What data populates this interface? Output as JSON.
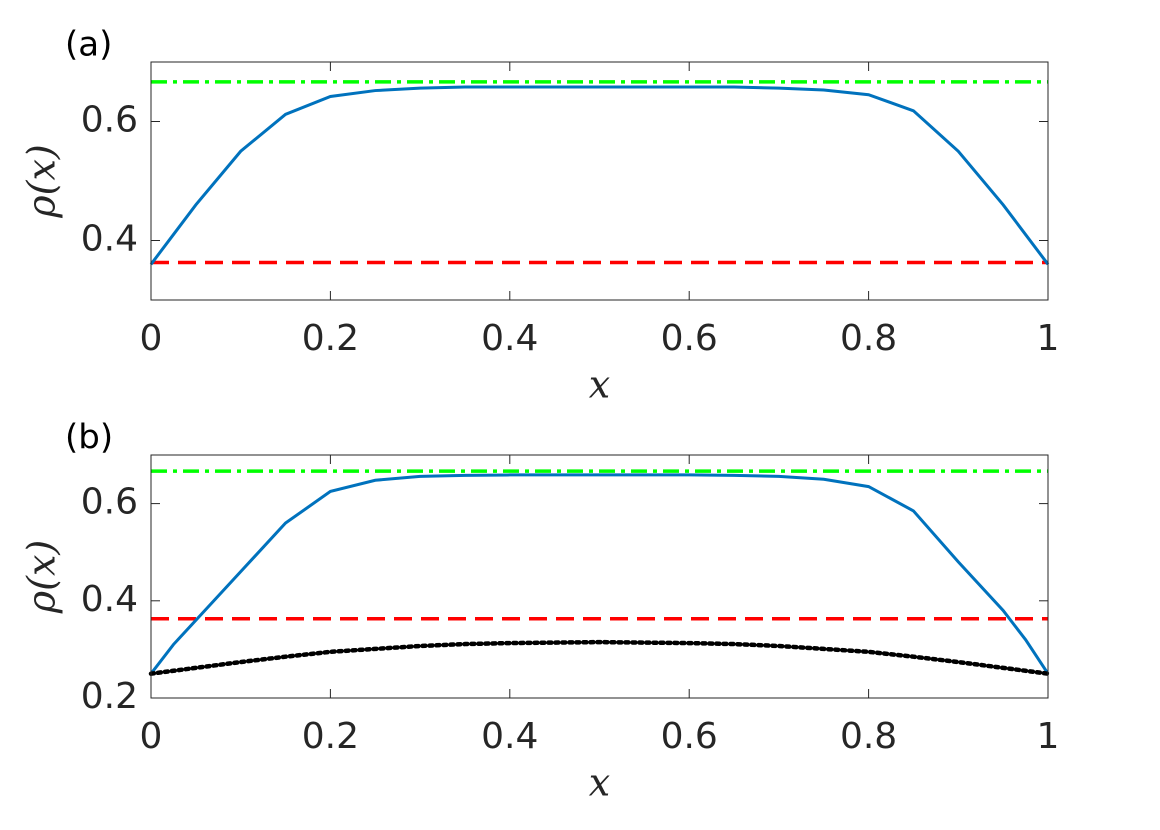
{
  "chart_data": [
    {
      "type": "line",
      "panel_label": "(a)",
      "xlabel": "x",
      "ylabel": "ρ(x)",
      "xlim": [
        0,
        1
      ],
      "ylim": [
        0.3,
        0.7
      ],
      "xticks": [
        0,
        0.2,
        0.4,
        0.6,
        0.8,
        1
      ],
      "yticks": [
        0.4,
        0.6
      ],
      "x": [
        0,
        0.025,
        0.05,
        0.1,
        0.15,
        0.2,
        0.25,
        0.3,
        0.35,
        0.4,
        0.5,
        0.6,
        0.65,
        0.7,
        0.75,
        0.8,
        0.85,
        0.9,
        0.95,
        0.975,
        1
      ],
      "series": [
        {
          "color": "#0072BD",
          "line_style": "solid",
          "values": [
            0.36,
            0.41,
            0.46,
            0.55,
            0.612,
            0.642,
            0.652,
            0.656,
            0.658,
            0.658,
            0.658,
            0.658,
            0.658,
            0.656,
            0.653,
            0.645,
            0.618,
            0.55,
            0.46,
            0.41,
            0.36
          ]
        }
      ],
      "hlines": [
        {
          "value": 0.6667,
          "color": "#00FF00",
          "line_style": "dashdot"
        },
        {
          "value": 0.363,
          "color": "#FF0000",
          "line_style": "dashed"
        }
      ]
    },
    {
      "type": "line",
      "panel_label": "(b)",
      "xlabel": "x",
      "ylabel": "ρ(x)",
      "xlim": [
        0,
        1
      ],
      "ylim": [
        0.2,
        0.7
      ],
      "xticks": [
        0,
        0.2,
        0.4,
        0.6,
        0.8,
        1
      ],
      "yticks": [
        0.2,
        0.4,
        0.6
      ],
      "x": [
        0,
        0.025,
        0.05,
        0.1,
        0.15,
        0.2,
        0.25,
        0.3,
        0.35,
        0.4,
        0.5,
        0.6,
        0.65,
        0.7,
        0.75,
        0.8,
        0.85,
        0.9,
        0.95,
        0.975,
        1
      ],
      "series": [
        {
          "color": "#0072BD",
          "line_style": "solid",
          "values": [
            0.25,
            0.31,
            0.36,
            0.46,
            0.56,
            0.625,
            0.648,
            0.656,
            0.658,
            0.659,
            0.659,
            0.659,
            0.658,
            0.656,
            0.65,
            0.635,
            0.585,
            0.48,
            0.38,
            0.32,
            0.25
          ]
        },
        {
          "color": "#000000",
          "line_style": "dotted",
          "values": [
            0.25,
            0.256,
            0.262,
            0.274,
            0.285,
            0.295,
            0.301,
            0.307,
            0.311,
            0.313,
            0.315,
            0.313,
            0.311,
            0.307,
            0.301,
            0.295,
            0.285,
            0.274,
            0.262,
            0.256,
            0.25
          ]
        }
      ],
      "hlines": [
        {
          "value": 0.6667,
          "color": "#00FF00",
          "line_style": "dashdot"
        },
        {
          "value": 0.363,
          "color": "#FF0000",
          "line_style": "dashed"
        }
      ]
    }
  ]
}
